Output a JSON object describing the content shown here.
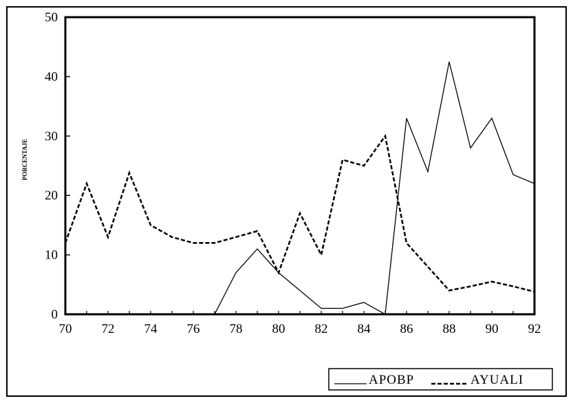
{
  "chart_data": {
    "type": "line",
    "title": "",
    "xlabel": "",
    "ylabel": "PORCENTAJE",
    "x": [
      70,
      71,
      72,
      73,
      74,
      75,
      76,
      77,
      78,
      79,
      80,
      81,
      82,
      83,
      84,
      85,
      86,
      87,
      88,
      89,
      90,
      91,
      92
    ],
    "xlim": [
      70,
      92
    ],
    "ylim": [
      0,
      50
    ],
    "xticks": [
      "70",
      "72",
      "74",
      "76",
      "78",
      "80",
      "82",
      "84",
      "86",
      "88",
      "90",
      "92"
    ],
    "yticks": [
      "0",
      "10",
      "20",
      "30",
      "40",
      "50"
    ],
    "grid": false,
    "legend_position": "bottom-right",
    "series": [
      {
        "name": "APOBP",
        "style": "solid",
        "values": [
          0,
          0,
          0,
          0,
          0,
          0,
          0,
          0,
          7,
          11,
          7,
          4,
          1,
          1,
          2,
          0,
          33,
          24,
          42.5,
          28,
          33,
          23.5,
          22
        ]
      },
      {
        "name": "AYUALI",
        "style": "dashed",
        "values": [
          12,
          22,
          13,
          23.8,
          15,
          13,
          12,
          12,
          13,
          14,
          7,
          17,
          10,
          26,
          25,
          30,
          12,
          8,
          4,
          4.7,
          5.5,
          4.7,
          3.8
        ]
      }
    ]
  },
  "colors": {
    "line": "#000000",
    "background": "#ffffff"
  }
}
